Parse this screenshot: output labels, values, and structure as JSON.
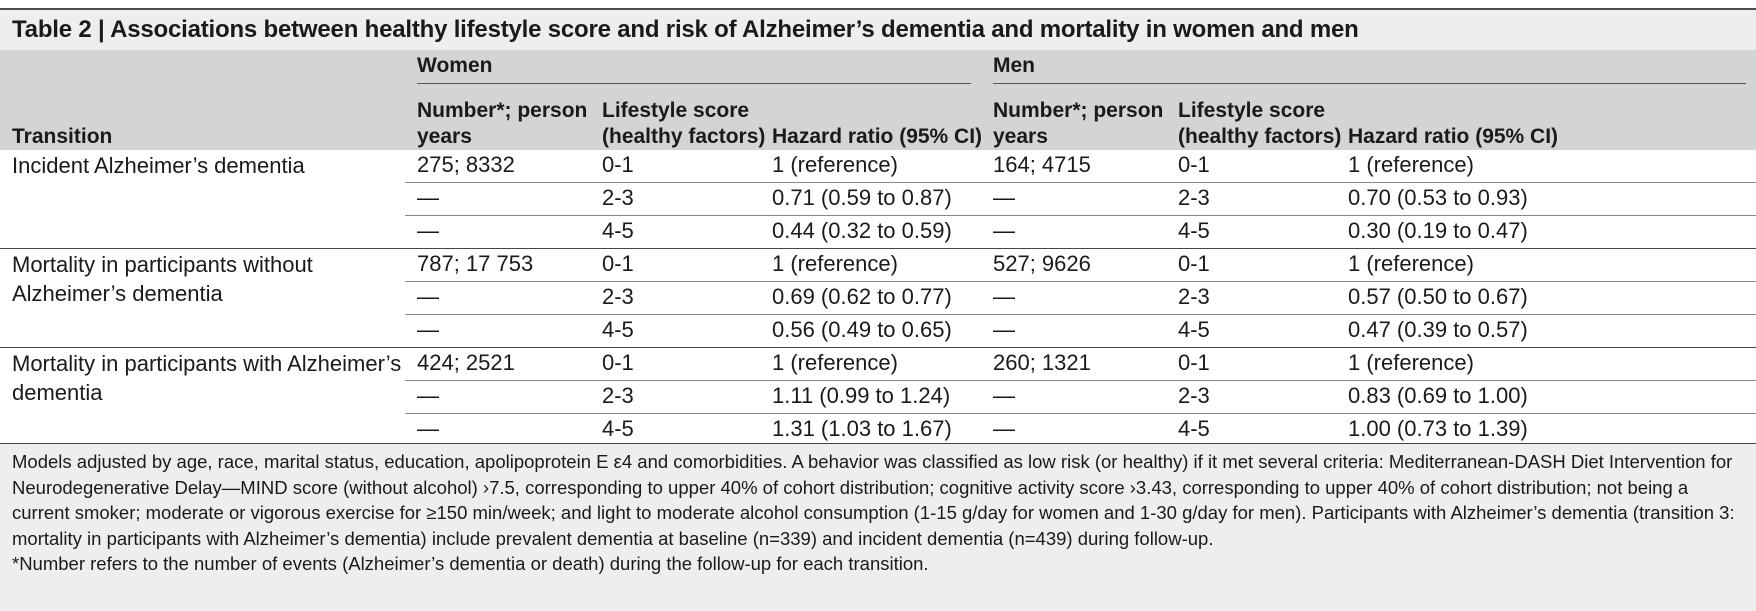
{
  "table": {
    "title": "Table 2 | Associations between healthy lifestyle score and risk of Alzheimer’s dementia and mortality in women and men",
    "groups": {
      "women": "Women",
      "men": "Men"
    },
    "headers": {
      "transition": "Transition",
      "number_line1": "Number*; person",
      "number_line2": "years",
      "score_line1": "Lifestyle score",
      "score_line2": "(healthy factors)",
      "hr": "Hazard ratio (95% CI)"
    },
    "blocks": [
      {
        "transition": "Incident Alzheimer’s dementia",
        "rows": [
          {
            "w_num": "275; 8332",
            "w_score": "0-1",
            "w_hr": "1 (reference)",
            "m_num": "164; 4715",
            "m_score": "0-1",
            "m_hr": "1 (reference)"
          },
          {
            "w_num": "—",
            "w_score": "2-3",
            "w_hr": "0.71 (0.59 to 0.87)",
            "m_num": "—",
            "m_score": "2-3",
            "m_hr": "0.70 (0.53 to 0.93)"
          },
          {
            "w_num": "—",
            "w_score": "4-5",
            "w_hr": "0.44 (0.32 to 0.59)",
            "m_num": "—",
            "m_score": "4-5",
            "m_hr": "0.30 (0.19 to 0.47)"
          }
        ]
      },
      {
        "transition": "Mortality in participants without Alzheimer’s dementia",
        "rows": [
          {
            "w_num": "787; 17 753",
            "w_score": "0-1",
            "w_hr": "1 (reference)",
            "m_num": "527; 9626",
            "m_score": "0-1",
            "m_hr": "1 (reference)"
          },
          {
            "w_num": "—",
            "w_score": "2-3",
            "w_hr": "0.69 (0.62 to 0.77)",
            "m_num": "—",
            "m_score": "2-3",
            "m_hr": "0.57 (0.50 to 0.67)"
          },
          {
            "w_num": "—",
            "w_score": "4-5",
            "w_hr": "0.56 (0.49 to 0.65)",
            "m_num": "—",
            "m_score": "4-5",
            "m_hr": "0.47 (0.39 to 0.57)"
          }
        ]
      },
      {
        "transition": "Mortality in participants with Alzheimer’s dementia",
        "rows": [
          {
            "w_num": "424; 2521",
            "w_score": "0-1",
            "w_hr": "1 (reference)",
            "m_num": "260; 1321",
            "m_score": "0-1",
            "m_hr": "1 (reference)"
          },
          {
            "w_num": "—",
            "w_score": "2-3",
            "w_hr": "1.11 (0.99 to 1.24)",
            "m_num": "—",
            "m_score": "2-3",
            "m_hr": "0.83 (0.69 to 1.00)"
          },
          {
            "w_num": "—",
            "w_score": "4-5",
            "w_hr": "1.31 (1.03 to 1.67)",
            "m_num": "—",
            "m_score": "4-5",
            "m_hr": "1.00 (0.73 to 1.39)"
          }
        ]
      }
    ],
    "notes": [
      "Models adjusted by age, race, marital status, education, apolipoprotein E ε4 and comorbidities. A behavior was classified as low risk (or healthy) if it met several criteria: Mediterranean-DASH Diet Intervention for Neurodegenerative Delay—MIND score (without alcohol) ›7.5, corresponding to upper 40% of cohort distribution; cognitive activity score ›3.43, corresponding to upper 40% of cohort distribution; not being a current smoker; moderate or vigorous exercise for ≥150 min/week; and light to moderate alcohol consumption (1-15 g/day for women and 1-30 g/day for men). Participants with Alzheimer’s dementia (transition 3: mortality in participants with Alzheimer’s dementia) include prevalent dementia at baseline (n=339) and incident dementia (n=439) during follow-up.",
      "*Number refers to the number of events (Alzheimer’s dementia or death) during the follow-up for each transition."
    ]
  }
}
